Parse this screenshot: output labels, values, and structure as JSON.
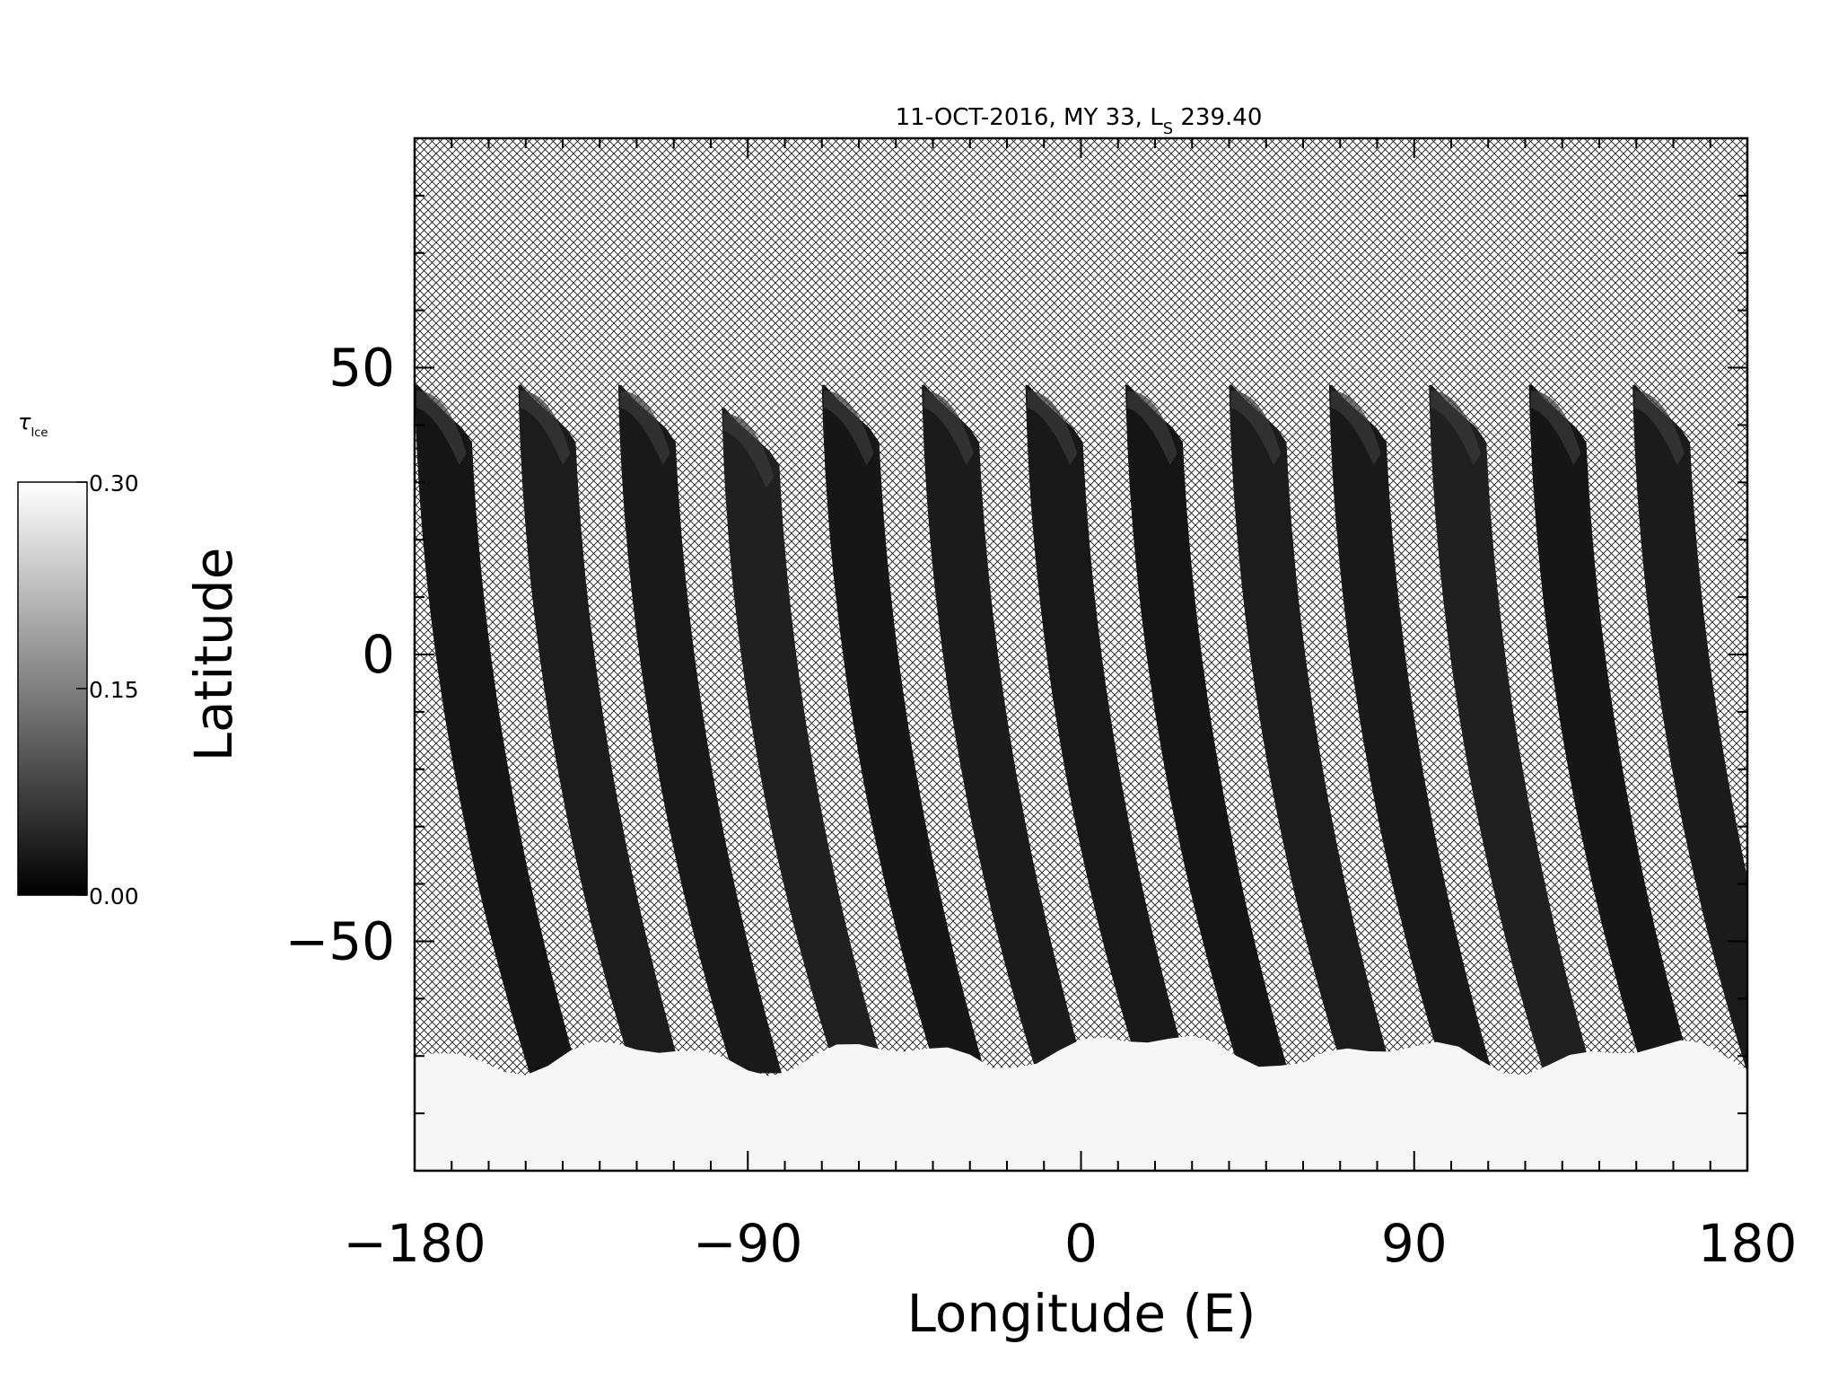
{
  "colorbar": {
    "label_main": "τ",
    "label_sub": "Ice",
    "ticks": [
      "0.30",
      "0.15",
      "0.00"
    ],
    "range": [
      0.0,
      0.3
    ]
  },
  "chart_data": {
    "type": "heatmap",
    "title": "11-OCT-2016, MY 33,  L",
    "title_sub": "S",
    "title_tail": " 239.40",
    "xlabel": "Longitude (E)",
    "ylabel": "Latitude",
    "xlim": [
      -180,
      180
    ],
    "ylim": [
      -90,
      90
    ],
    "x_ticks": [
      -180,
      -90,
      0,
      90,
      180
    ],
    "x_tick_labels": [
      "−180",
      "−90",
      "0",
      "90",
      "180"
    ],
    "y_ticks": [
      -50,
      0,
      50
    ],
    "y_tick_labels": [
      "−50",
      "0",
      "50"
    ],
    "no_data_fill": "crosshatch",
    "colorscale": "grayscale",
    "orbit_swaths": [
      {
        "lon_start": -180,
        "lat_top": 47
      },
      {
        "lon_start": -152,
        "lat_top": 47
      },
      {
        "lon_start": -125,
        "lat_top": 47
      },
      {
        "lon_start": -97,
        "lat_top": 43
      },
      {
        "lon_start": -70,
        "lat_top": 47
      },
      {
        "lon_start": -43,
        "lat_top": 47
      },
      {
        "lon_start": -15,
        "lat_top": 47
      },
      {
        "lon_start": 12,
        "lat_top": 47
      },
      {
        "lon_start": 40,
        "lat_top": 47
      },
      {
        "lon_start": 67,
        "lat_top": 47
      },
      {
        "lon_start": 94,
        "lat_top": 47
      },
      {
        "lon_start": 121,
        "lat_top": 47
      },
      {
        "lon_start": 149,
        "lat_top": 47
      }
    ],
    "polar_cap_lat_boundary": -70
  }
}
